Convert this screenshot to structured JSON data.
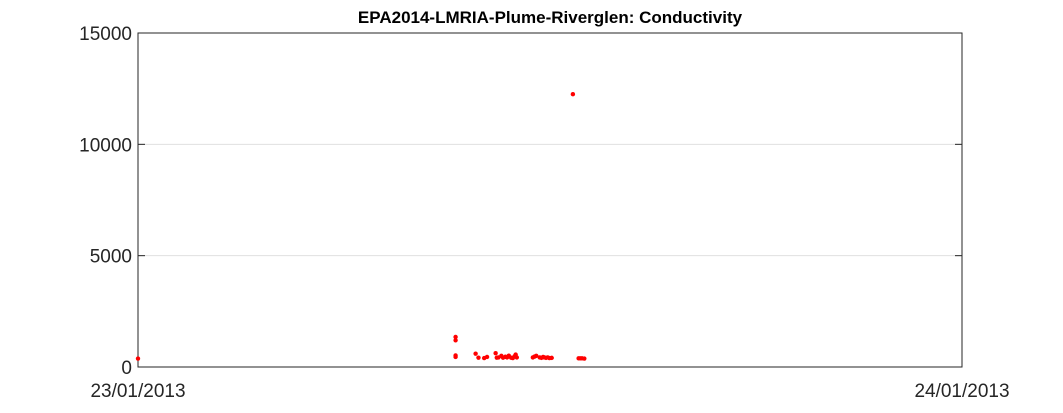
{
  "chart_data": {
    "type": "scatter",
    "title": "EPA2014-LMRIA-Plume-Riverglen: Conductivity",
    "xlabel": "",
    "ylabel": "",
    "xlim": [
      "23/01/2013 00:00",
      "24/01/2013 00:00"
    ],
    "ylim": [
      0,
      15000
    ],
    "x_tick_labels": [
      "23/01/2013",
      "24/01/2013"
    ],
    "y_ticks": [
      0,
      5000,
      10000,
      15000
    ],
    "grid": "horizontal",
    "marker_color": "#ff0000",
    "series": [
      {
        "points": [
          {
            "x": "23/01/2013 00:00",
            "y": 380
          },
          {
            "x": "23/01/2013 09:15",
            "y": 1350
          },
          {
            "x": "23/01/2013 09:15",
            "y": 1200
          },
          {
            "x": "23/01/2013 09:15",
            "y": 520
          },
          {
            "x": "23/01/2013 09:15",
            "y": 450
          },
          {
            "x": "23/01/2013 09:50",
            "y": 600
          },
          {
            "x": "23/01/2013 09:55",
            "y": 420
          },
          {
            "x": "23/01/2013 10:05",
            "y": 400
          },
          {
            "x": "23/01/2013 10:10",
            "y": 450
          },
          {
            "x": "23/01/2013 10:25",
            "y": 620
          },
          {
            "x": "23/01/2013 10:27",
            "y": 420
          },
          {
            "x": "23/01/2013 10:30",
            "y": 430
          },
          {
            "x": "23/01/2013 10:35",
            "y": 500
          },
          {
            "x": "23/01/2013 10:38",
            "y": 420
          },
          {
            "x": "23/01/2013 10:42",
            "y": 460
          },
          {
            "x": "23/01/2013 10:45",
            "y": 430
          },
          {
            "x": "23/01/2013 10:48",
            "y": 510
          },
          {
            "x": "23/01/2013 10:52",
            "y": 420
          },
          {
            "x": "23/01/2013 10:55",
            "y": 400
          },
          {
            "x": "23/01/2013 10:58",
            "y": 480
          },
          {
            "x": "23/01/2013 11:00",
            "y": 560
          },
          {
            "x": "23/01/2013 11:02",
            "y": 430
          },
          {
            "x": "23/01/2013 11:30",
            "y": 430
          },
          {
            "x": "23/01/2013 11:33",
            "y": 470
          },
          {
            "x": "23/01/2013 11:36",
            "y": 500
          },
          {
            "x": "23/01/2013 11:42",
            "y": 430
          },
          {
            "x": "23/01/2013 11:45",
            "y": 410
          },
          {
            "x": "23/01/2013 11:48",
            "y": 450
          },
          {
            "x": "23/01/2013 11:50",
            "y": 430
          },
          {
            "x": "23/01/2013 11:53",
            "y": 410
          },
          {
            "x": "23/01/2013 11:56",
            "y": 430
          },
          {
            "x": "23/01/2013 11:59",
            "y": 400
          },
          {
            "x": "23/01/2013 12:03",
            "y": 410
          },
          {
            "x": "23/01/2013 12:40",
            "y": 12250
          },
          {
            "x": "23/01/2013 12:50",
            "y": 390
          },
          {
            "x": "23/01/2013 12:53",
            "y": 390
          },
          {
            "x": "23/01/2013 12:56",
            "y": 390
          },
          {
            "x": "23/01/2013 13:00",
            "y": 380
          }
        ]
      }
    ]
  }
}
